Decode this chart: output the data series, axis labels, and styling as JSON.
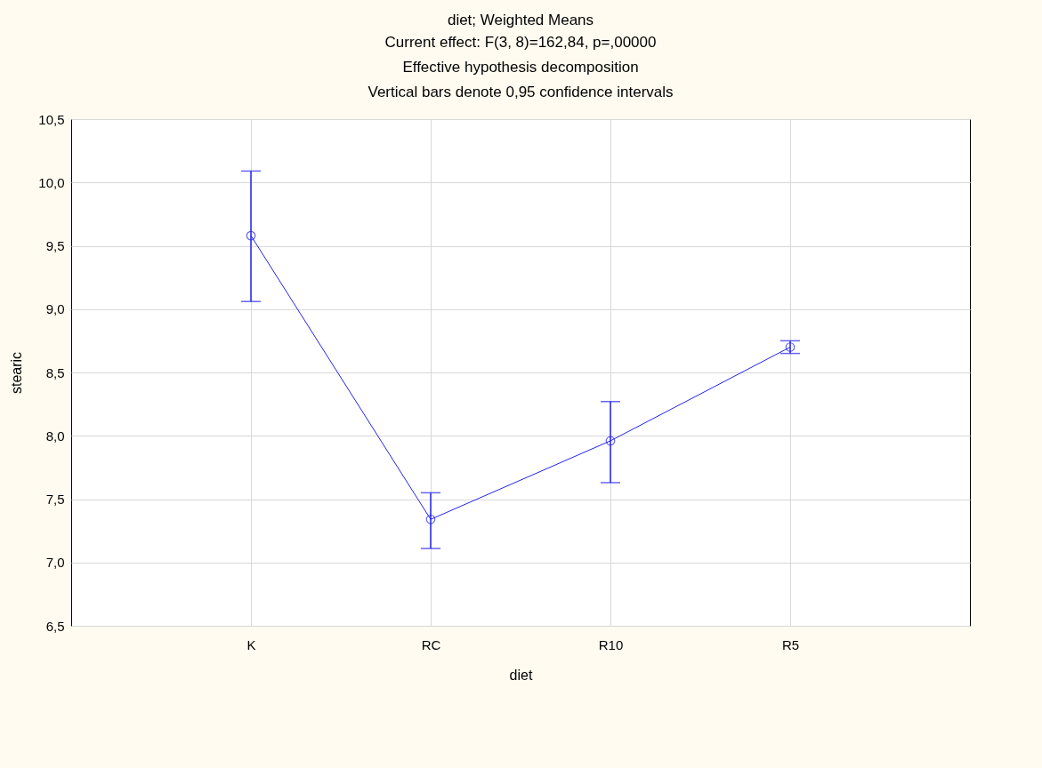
{
  "chart_data": {
    "type": "line",
    "title": "diet; Weighted Means",
    "subtitle": "Current effect: F(3, 8)=162,84, p=,00000",
    "annotations": [
      "Effective hypothesis decomposition",
      "Vertical bars denote 0,95 confidence intervals"
    ],
    "xlabel": "diet",
    "ylabel": "stearic",
    "categories": [
      "K",
      "RC",
      "R10",
      "R5"
    ],
    "series": [
      {
        "color": "#2222ee",
        "values": [
          9.58,
          7.34,
          7.96,
          8.7
        ],
        "errors": [
          [
            9.06,
            10.09
          ],
          [
            7.11,
            7.55
          ],
          [
            7.63,
            8.27
          ],
          [
            8.65,
            8.75
          ]
        ]
      }
    ],
    "ylim": [
      6.5,
      10.5
    ],
    "yticks": [
      {
        "value": 6.5,
        "label": "6,5"
      },
      {
        "value": 7,
        "label": "7,0"
      },
      {
        "value": 7.5,
        "label": "7,5"
      },
      {
        "value": 8,
        "label": "8,0"
      },
      {
        "value": 8.5,
        "label": "8,5"
      },
      {
        "value": 9,
        "label": "9,0"
      },
      {
        "value": 9.5,
        "label": "9,5"
      },
      {
        "value": 10,
        "label": "10,0"
      },
      {
        "value": 10.5,
        "label": "10,5"
      }
    ],
    "grid": true,
    "marker": "circle",
    "line_style": "solid"
  }
}
